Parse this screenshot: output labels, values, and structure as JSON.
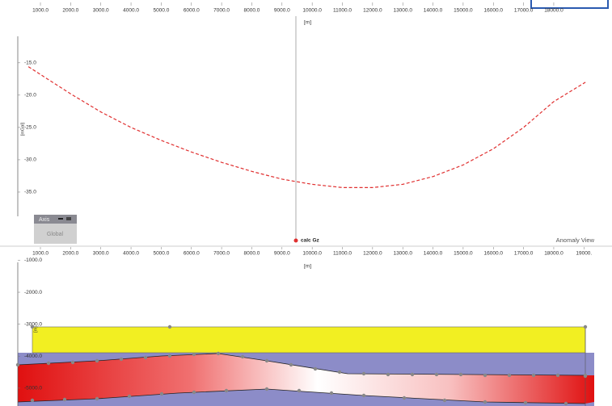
{
  "chart_data": [
    {
      "type": "line",
      "x_label": "[m]",
      "y_label": "[mGal]",
      "xlim": [
        250,
        19340
      ],
      "ylim": [
        -38.75,
        -10.9
      ],
      "xticks": [
        {
          "value": 1000,
          "label": "1000.0"
        },
        {
          "value": 2000,
          "label": "2000.0"
        },
        {
          "value": 3000,
          "label": "3000.0"
        },
        {
          "value": 4000,
          "label": "4000.0"
        },
        {
          "value": 5000,
          "label": "5000.0"
        },
        {
          "value": 6000,
          "label": "6000.0"
        },
        {
          "value": 7000,
          "label": "7000.0"
        },
        {
          "value": 8000,
          "label": "8000.0"
        },
        {
          "value": 9000,
          "label": "9000.0"
        },
        {
          "value": 10000,
          "label": "10000.0"
        },
        {
          "value": 11000,
          "label": "11000.0"
        },
        {
          "value": 12000,
          "label": "12000.0"
        },
        {
          "value": 13000,
          "label": "13000.0"
        },
        {
          "value": 14000,
          "label": "14000.0"
        },
        {
          "value": 15000,
          "label": "15000.0"
        },
        {
          "value": 16000,
          "label": "16000.0"
        },
        {
          "value": 17000,
          "label": "17000.0"
        },
        {
          "value": 18000,
          "label": "18000.0"
        }
      ],
      "yticks": [
        {
          "value": -15,
          "label": "-15.0"
        },
        {
          "value": -20,
          "label": "-20.0"
        },
        {
          "value": -25,
          "label": "-25.0"
        },
        {
          "value": -30,
          "label": "-30.0"
        },
        {
          "value": -35,
          "label": "-35.0"
        }
      ],
      "x": [
        600,
        1000,
        2000,
        3000,
        4000,
        5000,
        6000,
        7000,
        8000,
        9000,
        10000,
        11000,
        12000,
        13000,
        14000,
        15000,
        16000,
        17000,
        18000,
        19050
      ],
      "series": [
        {
          "name": "calc Gz",
          "color": "#e03030",
          "values": [
            -15.6,
            -16.8,
            -19.8,
            -22.6,
            -25.0,
            -27.0,
            -28.8,
            -30.4,
            -31.8,
            -33.0,
            -33.8,
            -34.3,
            -34.3,
            -33.8,
            -32.6,
            -30.8,
            -28.3,
            -25.0,
            -21.0,
            -18.0
          ]
        }
      ]
    },
    {
      "type": "section",
      "x_label": "[m]",
      "y_label": "[m]",
      "xlim": [
        250,
        19340
      ],
      "ylim": [
        -5558,
        -1065
      ],
      "xticks": [
        {
          "value": 1000,
          "label": "1000.0"
        },
        {
          "value": 2000,
          "label": "2000.0"
        },
        {
          "value": 3000,
          "label": "3000.0"
        },
        {
          "value": 4000,
          "label": "4000.0"
        },
        {
          "value": 5000,
          "label": "5000.0"
        },
        {
          "value": 6000,
          "label": "6000.0"
        },
        {
          "value": 7000,
          "label": "7000.0"
        },
        {
          "value": 8000,
          "label": "8000.0"
        },
        {
          "value": 9000,
          "label": "9000.0"
        },
        {
          "value": 10000,
          "label": "10000.0"
        },
        {
          "value": 11000,
          "label": "11000.0"
        },
        {
          "value": 12000,
          "label": "12000.0"
        },
        {
          "value": 13000,
          "label": "13000.0"
        },
        {
          "value": 14000,
          "label": "14000.0"
        },
        {
          "value": 15000,
          "label": "15000.0"
        },
        {
          "value": 16000,
          "label": "16000.0"
        },
        {
          "value": 17000,
          "label": "17000.0"
        },
        {
          "value": 18000,
          "label": "18000.0"
        },
        {
          "value": 19000,
          "label": "19000."
        }
      ],
      "yticks": [
        {
          "value": -1000,
          "label": "-1000.0"
        },
        {
          "value": -2000,
          "label": "-2000.0"
        },
        {
          "value": -3000,
          "label": "-3000.0"
        },
        {
          "value": -4000,
          "label": "-4000.0"
        },
        {
          "value": -5000,
          "label": "-5000.0"
        }
      ]
    }
  ],
  "ui": {
    "axis_panel": {
      "title": "Axis",
      "button": "Global"
    },
    "view_label": "Anomaly View"
  }
}
